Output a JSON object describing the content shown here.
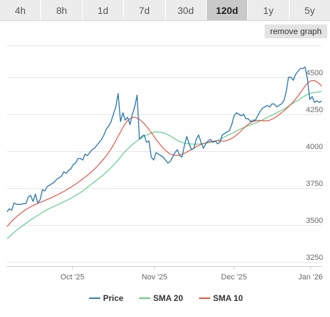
{
  "tabs": [
    {
      "label": "4h",
      "active": false
    },
    {
      "label": "8h",
      "active": false
    },
    {
      "label": "1d",
      "active": false
    },
    {
      "label": "7d",
      "active": false
    },
    {
      "label": "30d",
      "active": false
    },
    {
      "label": "120d",
      "active": true
    },
    {
      "label": "1y",
      "active": false
    },
    {
      "label": "5y",
      "active": false
    }
  ],
  "remove_graph_label": "remove graph",
  "chart_data": {
    "type": "line",
    "ylim": [
      3250,
      4500
    ],
    "y_ticks": [
      "4500",
      "4250",
      "4000",
      "3750",
      "3500",
      "3250"
    ],
    "x_ticks": [
      "Oct '25",
      "Nov '25",
      "Dec '25",
      "Jan '26"
    ],
    "grid": "horizontal",
    "legend_position": "bottom",
    "colors": {
      "price": "#2f7ab0",
      "sma20": "#58cf88",
      "sma10": "#e8503f",
      "grid": "#e6e6e6"
    },
    "series": [
      {
        "name": "Price",
        "values": [
          3590,
          3610,
          3600,
          3650,
          3640,
          3640,
          3640,
          3645,
          3645,
          3690,
          3700,
          3660,
          3710,
          3650,
          3670,
          3740,
          3730,
          3760,
          3770,
          3780,
          3790,
          3810,
          3820,
          3830,
          3860,
          3850,
          3870,
          3880,
          3910,
          3920,
          3950,
          3950,
          3940,
          3980,
          3970,
          3990,
          4010,
          4020,
          4040,
          4060,
          4080,
          4110,
          4150,
          4170,
          4200,
          4250,
          4300,
          4390,
          4200,
          4260,
          4210,
          4230,
          4180,
          4250,
          4300,
          4380,
          4080,
          4100,
          4110,
          4060,
          4070,
          3960,
          3940,
          3990,
          3980,
          3970,
          3960,
          3940,
          3920,
          3930,
          3960,
          3990,
          4010,
          3970,
          3960,
          4040,
          4100,
          4050,
          4010,
          4020,
          4080,
          4110,
          4060,
          4020,
          4050,
          4070,
          4080,
          4060,
          4070,
          4050,
          4060,
          4110,
          4120,
          4130,
          4140,
          4180,
          4240,
          4260,
          4250,
          4240,
          4250,
          4220,
          4220,
          4200,
          4210,
          4210,
          4240,
          4270,
          4290,
          4300,
          4310,
          4300,
          4320,
          4320,
          4300,
          4310,
          4320,
          4340,
          4400,
          4500,
          4500,
          4480,
          4520,
          4540,
          4560,
          4560,
          4570,
          4490,
          4350,
          4370,
          4330,
          4340,
          4330,
          4340
        ]
      },
      {
        "name": "SMA 20",
        "values": [
          3410,
          3420,
          3435,
          3450,
          3465,
          3475,
          3488,
          3500,
          3512,
          3523,
          3535,
          3545,
          3555,
          3565,
          3575,
          3585,
          3595,
          3605,
          3612,
          3620,
          3627,
          3635,
          3642,
          3650,
          3657,
          3665,
          3672,
          3680,
          3690,
          3700,
          3710,
          3720,
          3730,
          3742,
          3755,
          3768,
          3780,
          3792,
          3805,
          3818,
          3830,
          3843,
          3857,
          3872,
          3888,
          3905,
          3922,
          3940,
          3960,
          3980,
          3998,
          4015,
          4030,
          4045,
          4058,
          4070,
          4080,
          4090,
          4100,
          4108,
          4116,
          4122,
          4128,
          4130,
          4130,
          4128,
          4125,
          4120,
          4112,
          4103,
          4093,
          4083,
          4073,
          4065,
          4060,
          4055,
          4052,
          4050,
          4048,
          4047,
          4047,
          4048,
          4050,
          4052,
          4054,
          4057,
          4060,
          4064,
          4068,
          4073,
          4080,
          4088,
          4096,
          4105,
          4113,
          4120,
          4128,
          4136,
          4145,
          4153,
          4160,
          4166,
          4172,
          4178,
          4184,
          4190,
          4197,
          4205,
          4212,
          4220,
          4228,
          4236,
          4244,
          4252,
          4260,
          4268,
          4276,
          4285,
          4295,
          4305,
          4315,
          4325,
          4335,
          4345,
          4355,
          4365,
          4375,
          4385,
          4390,
          4395,
          4398,
          4400,
          4402,
          4404
        ]
      },
      {
        "name": "SMA 10",
        "values": [
          3490,
          3508,
          3525,
          3542,
          3557,
          3570,
          3583,
          3595,
          3606,
          3616,
          3625,
          3633,
          3640,
          3647,
          3654,
          3661,
          3668,
          3675,
          3682,
          3689,
          3697,
          3705,
          3713,
          3721,
          3730,
          3740,
          3750,
          3760,
          3771,
          3782,
          3794,
          3806,
          3818,
          3830,
          3843,
          3857,
          3872,
          3888,
          3905,
          3923,
          3942,
          3962,
          3984,
          4008,
          4034,
          4062,
          4092,
          4122,
          4152,
          4180,
          4202,
          4218,
          4227,
          4230,
          4226,
          4217,
          4204,
          4188,
          4170,
          4150,
          4128,
          4105,
          4082,
          4060,
          4040,
          4022,
          4006,
          3992,
          3981,
          3975,
          3972,
          3972,
          3975,
          3980,
          3987,
          3995,
          4004,
          4014,
          4023,
          4032,
          4040,
          4047,
          4053,
          4058,
          4062,
          4065,
          4068,
          4070,
          4071,
          4070,
          4068,
          4070,
          4075,
          4082,
          4091,
          4102,
          4115,
          4130,
          4146,
          4162,
          4176,
          4188,
          4197,
          4203,
          4207,
          4208,
          4207,
          4205,
          4205,
          4208,
          4214,
          4222,
          4232,
          4244,
          4257,
          4270,
          4283,
          4298,
          4314,
          4331,
          4350,
          4370,
          4392,
          4415,
          4438,
          4458,
          4472,
          4479,
          4478,
          4470,
          4458,
          4440
        ]
      }
    ]
  }
}
